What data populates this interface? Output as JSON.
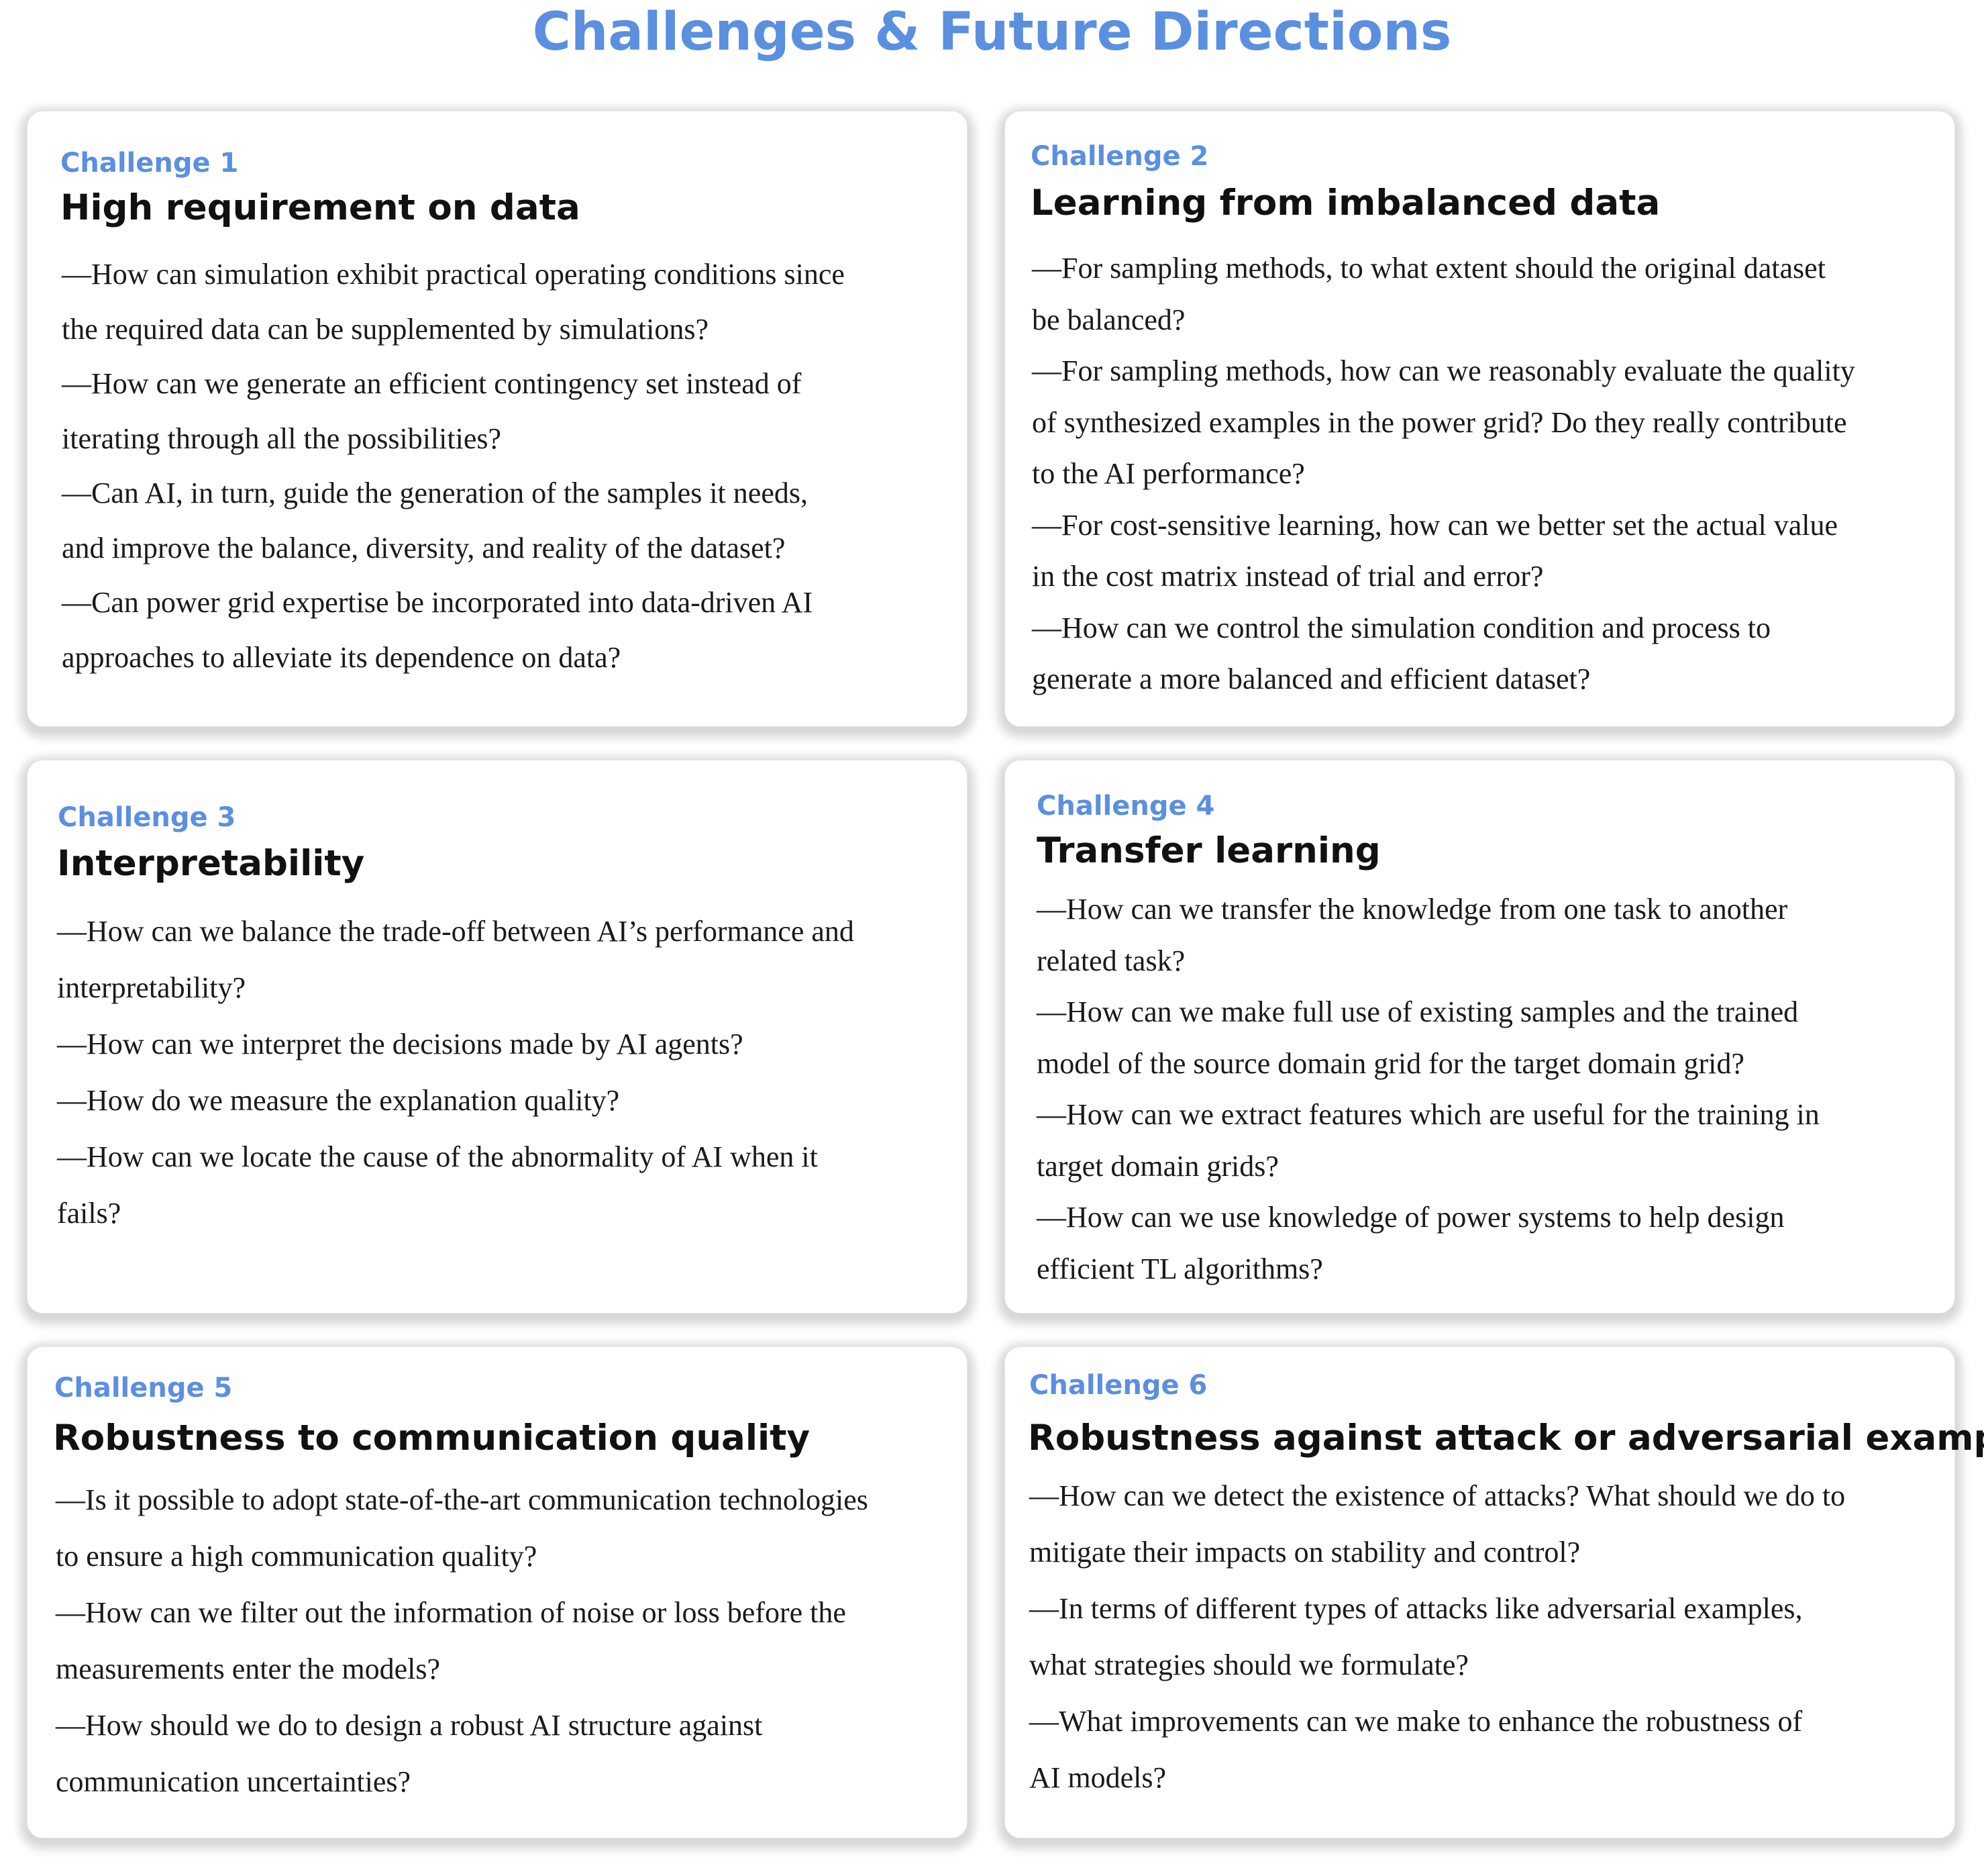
{
  "title": "Challenges & Future Directions",
  "challenges": [
    {
      "label": "Challenge 1",
      "heading": "High requirement on data",
      "lines": [
        "—How can simulation exhibit practical operating conditions since",
        "the required data can be supplemented by simulations?",
        "—How can we generate an efficient contingency set instead of",
        "iterating through all the possibilities?",
        "—Can AI, in turn, guide the generation of the samples it needs,",
        "and improve the balance, diversity, and reality of the dataset?",
        "—Can power grid expertise be incorporated into data-driven AI",
        "approaches to alleviate its dependence on data?"
      ]
    },
    {
      "label": "Challenge 2",
      "heading": "Learning from imbalanced data",
      "lines": [
        "—For sampling methods, to what extent should the original dataset",
        "be balanced?",
        "—For sampling methods, how can we reasonably evaluate the quality",
        "of synthesized examples in the power grid? Do they really contribute",
        "to the AI performance?",
        "—For cost-sensitive learning, how can we better set the actual value",
        "in the cost matrix instead of trial and error?",
        "—How can we control the simulation condition and process to",
        "generate a more balanced and efficient dataset?"
      ]
    },
    {
      "label": "Challenge 3",
      "heading": "Interpretability",
      "lines": [
        "—How can we balance the trade-off between AI’s performance and",
        "interpretability?",
        "—How can we interpret the decisions made by AI agents?",
        "—How do we measure the explanation quality?",
        "—How can we locate the cause of the abnormality of AI when it",
        "fails?"
      ]
    },
    {
      "label": "Challenge 4",
      "heading": "Transfer learning",
      "lines": [
        "—How can we transfer the knowledge from one task to another",
        "related task?",
        "—How can we make full use of existing samples and the trained",
        "model of the source domain grid for the target domain grid?",
        "—How can we extract features which are useful for the training in",
        "target domain grids?",
        "—How can we use knowledge of power systems to help design",
        "efficient TL algorithms?"
      ]
    },
    {
      "label": "Challenge 5",
      "heading": "Robustness to communication quality",
      "lines": [
        "—Is it possible to adopt state-of-the-art communication technologies",
        "to ensure a high communication quality?",
        "—How can we filter out the information of noise or loss before the",
        "measurements enter the models?",
        "—How should we do to design a robust AI structure against",
        "communication uncertainties?"
      ]
    },
    {
      "label": "Challenge 6",
      "heading": "Robustness against attack or adversarial examples",
      "lines": [
        "—How can we detect the existence of attacks? What should we do to",
        "mitigate their impacts on stability and control?",
        "—In terms of different types of attacks like adversarial examples,",
        "what strategies should we formulate?",
        "—What improvements can we make to enhance the robustness of",
        "AI models?"
      ]
    }
  ]
}
